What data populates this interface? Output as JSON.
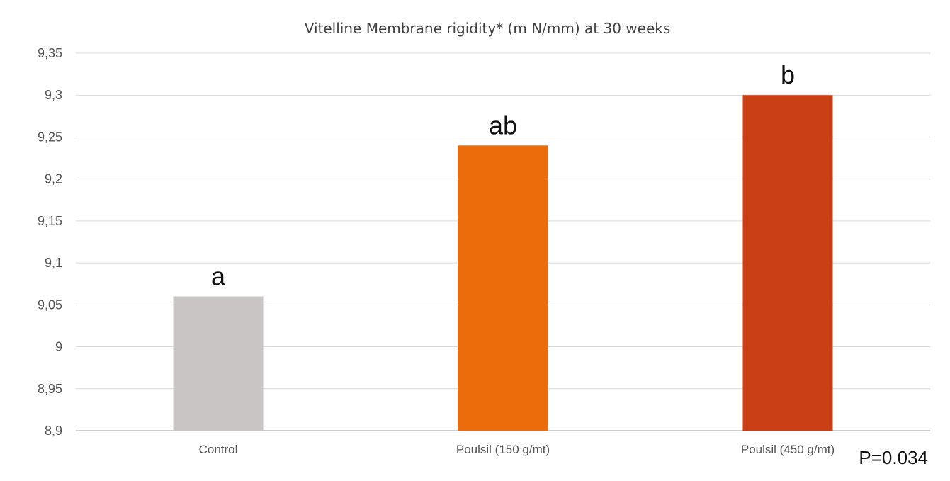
{
  "chart_data": {
    "type": "bar",
    "title": "Vitelline Membrane rigidity* (m N/mm) at 30 weeks",
    "xlabel": "",
    "ylabel": "",
    "categories": [
      "Control",
      "Poulsil (150 g/mt)",
      "Poulsil (450 g/mt)"
    ],
    "values": [
      9.06,
      9.24,
      9.3
    ],
    "significance_labels": [
      "a",
      "ab",
      "b"
    ],
    "bar_colors": [
      "#c9c5c5",
      "#ec6c0b",
      "#ca3f16"
    ],
    "ylim": [
      8.9,
      9.35
    ],
    "yticks": [
      8.9,
      8.95,
      9.0,
      9.05,
      9.1,
      9.15,
      9.2,
      9.25,
      9.3,
      9.35
    ],
    "ytick_labels": [
      "8,9",
      "8,95",
      "9",
      "9,05",
      "9,1",
      "9,15",
      "9,2",
      "9,25",
      "9,3",
      "9,35"
    ],
    "grid": true,
    "legend": "none",
    "annotation": "P=0.034"
  }
}
